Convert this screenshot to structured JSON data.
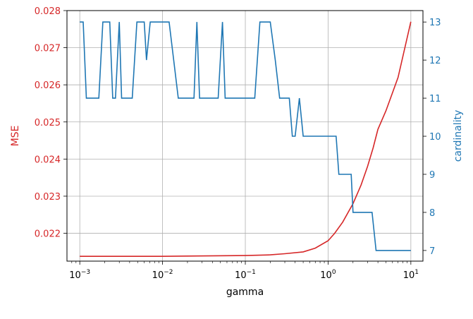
{
  "chart_data": {
    "type": "line",
    "x_scale": "log",
    "xlabel": "gamma",
    "xlim": [
      0.0007,
      14
    ],
    "grid": true,
    "x_ticks": [
      {
        "value": 0.001,
        "base": "10",
        "exp": "−3"
      },
      {
        "value": 0.01,
        "base": "10",
        "exp": "−2"
      },
      {
        "value": 0.1,
        "base": "10",
        "exp": "−1"
      },
      {
        "value": 1,
        "base": "10",
        "exp": "0"
      },
      {
        "value": 10,
        "base": "10",
        "exp": "1"
      }
    ],
    "left_axis": {
      "label": "MSE",
      "color": "#d62728",
      "ylim": [
        0.02125,
        0.028
      ],
      "ticks": [
        0.022,
        0.023,
        0.024,
        0.025,
        0.026,
        0.027,
        0.028
      ],
      "tick_labels": [
        "0.022",
        "0.023",
        "0.024",
        "0.025",
        "0.026",
        "0.027",
        "0.028"
      ]
    },
    "right_axis": {
      "label": "cardinality",
      "color": "#1f77b4",
      "ylim": [
        6.72,
        13.3
      ],
      "ticks": [
        7,
        8,
        9,
        10,
        11,
        12,
        13
      ],
      "tick_labels": [
        "7",
        "8",
        "9",
        "10",
        "11",
        "12",
        "13"
      ]
    },
    "series": [
      {
        "axis": "left",
        "color": "#d62728",
        "x": [
          0.001,
          0.01,
          0.1,
          0.2,
          0.3,
          0.5,
          0.7,
          1.0,
          1.2,
          1.5,
          2.0,
          2.5,
          3.0,
          3.5,
          4.0,
          5.0,
          7.0,
          10.0
        ],
        "y": [
          0.02138,
          0.02138,
          0.0214,
          0.02142,
          0.02145,
          0.0215,
          0.0216,
          0.0218,
          0.022,
          0.0223,
          0.0228,
          0.0233,
          0.0238,
          0.0243,
          0.0248,
          0.0253,
          0.0262,
          0.0277
        ]
      },
      {
        "axis": "right",
        "color": "#1f77b4",
        "x": [
          0.001,
          0.0011,
          0.0012,
          0.0017,
          0.0019,
          0.0023,
          0.0025,
          0.0027,
          0.003,
          0.0032,
          0.0043,
          0.0049,
          0.006,
          0.0064,
          0.0071,
          0.012,
          0.0155,
          0.024,
          0.026,
          0.028,
          0.047,
          0.053,
          0.057,
          0.13,
          0.15,
          0.2,
          0.23,
          0.26,
          0.34,
          0.37,
          0.4,
          0.45,
          0.5,
          1.25,
          1.35,
          1.9,
          2.0,
          3.4,
          3.8,
          10.0
        ],
        "y": [
          13,
          13,
          11,
          11,
          13,
          13,
          11,
          11,
          13,
          11,
          11,
          13,
          13,
          12,
          13,
          13,
          11,
          11,
          13,
          11,
          11,
          13,
          11,
          11,
          13,
          13,
          12,
          11,
          11,
          10,
          10,
          11,
          10,
          10,
          9,
          9,
          8,
          8,
          7,
          7
        ]
      }
    ]
  }
}
